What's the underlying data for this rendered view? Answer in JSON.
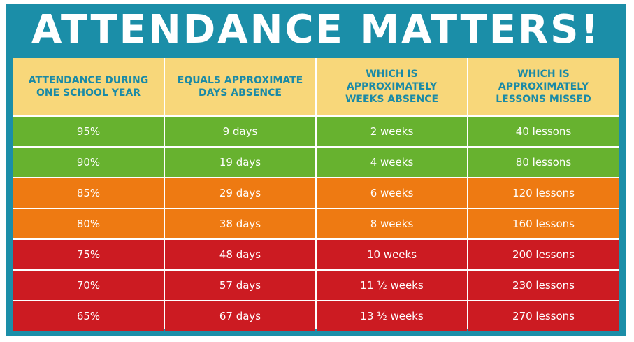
{
  "title": "ATTENDANCE MATTERS!",
  "colors": {
    "frame": "#1b8ea8",
    "header_bg": "#f8d77a",
    "header_text": "#1a8aa6",
    "green": "#67b22f",
    "orange": "#ee7a12",
    "red": "#cc1b22"
  },
  "headers": [
    [
      "ATTENDANCE DURING",
      "ONE SCHOOL YEAR"
    ],
    [
      "EQUALS APPROXIMATE",
      "DAYS ABSENCE"
    ],
    [
      "WHICH IS",
      "APPROXIMATELY",
      "WEEKS ABSENCE"
    ],
    [
      "WHICH IS",
      "APPROXIMATELY",
      "LESSONS MISSED"
    ]
  ],
  "rows": [
    {
      "color": "green",
      "cells": [
        "95%",
        "9 days",
        "2 weeks",
        "40 lessons"
      ]
    },
    {
      "color": "green",
      "cells": [
        "90%",
        "19 days",
        "4 weeks",
        "80 lessons"
      ]
    },
    {
      "color": "orange",
      "cells": [
        "85%",
        "29 days",
        "6 weeks",
        "120 lessons"
      ]
    },
    {
      "color": "orange",
      "cells": [
        "80%",
        "38 days",
        "8 weeks",
        "160 lessons"
      ]
    },
    {
      "color": "red",
      "cells": [
        "75%",
        "48 days",
        "10 weeks",
        "200 lessons"
      ]
    },
    {
      "color": "red",
      "cells": [
        "70%",
        "57 days",
        "11 ½ weeks",
        "230 lessons"
      ]
    },
    {
      "color": "red",
      "cells": [
        "65%",
        "67 days",
        "13 ½ weeks",
        "270 lessons"
      ]
    }
  ]
}
